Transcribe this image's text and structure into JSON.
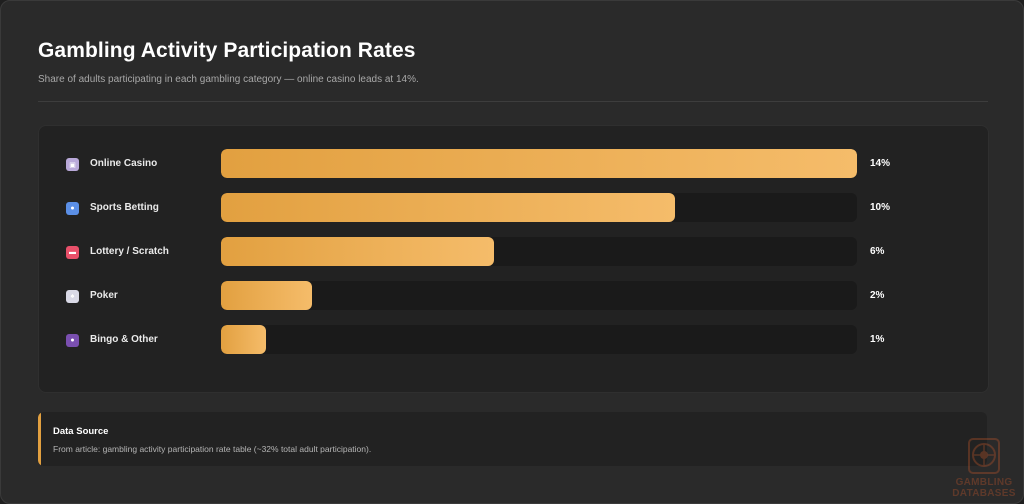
{
  "header": {
    "title": "Gambling Activity Participation Rates",
    "subtitle": "Share of adults participating in each gambling category — online casino leads at 14%."
  },
  "chart_data": {
    "type": "bar",
    "orientation": "horizontal",
    "categories": [
      "Online Casino",
      "Sports Betting",
      "Lottery / Scratch",
      "Poker",
      "Bingo & Other"
    ],
    "values": [
      14,
      10,
      6,
      2,
      1
    ],
    "value_labels": [
      "14%",
      "10%",
      "6%",
      "2%",
      "1%"
    ],
    "icons": [
      "slot-machine-icon",
      "globe-ball-icon",
      "ticket-icon",
      "playing-cards-icon",
      "bingo-ball-icon"
    ],
    "icon_colors": [
      "#b9a9d9",
      "#5b8fe6",
      "#e8506a",
      "#d9d9e6",
      "#7a4fb0"
    ],
    "xlim": [
      0,
      14
    ],
    "bar_color_start": "#e2a040",
    "bar_color_end": "#f5bc6a",
    "track_color": "#1a1a1a"
  },
  "source": {
    "title": "Data Source",
    "text": "From article: gambling activity participation rate table (~32% total adult participation)."
  },
  "watermark": {
    "line1": "GAMBLING",
    "line2": "DATABASES"
  }
}
